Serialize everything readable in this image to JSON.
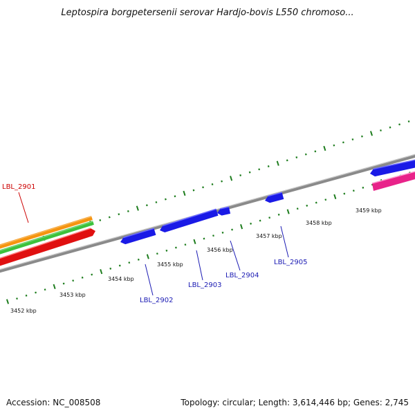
{
  "title": "Leptospira borgpetersenii serovar Hardjo-bovis L550 chromoso...",
  "footer": {
    "accession": "Accession: NC_008508",
    "topology": "Topology: circular; Length: 3,614,446 bp; Genes: 2,745"
  },
  "colors": {
    "backbone": "#8a8a8a",
    "tick": "#1e7d1e",
    "gene_forward": "#e01010",
    "gene_reverse": "#1a1ae6",
    "label_forward": "#cc0000",
    "label_reverse": "#1a1ab3",
    "track_orange": "#f5940f",
    "track_green": "#3cc23c",
    "track_magenta": "#e8238a"
  },
  "scale_ticks": [
    {
      "label": "3452 kbp"
    },
    {
      "label": "3453 kbp"
    },
    {
      "label": "3454 kbp"
    },
    {
      "label": "3455 kbp"
    },
    {
      "label": "3456 kbp"
    },
    {
      "label": "3457 kbp"
    },
    {
      "label": "3458 kbp"
    },
    {
      "label": "3459 kbp"
    }
  ],
  "genes": [
    {
      "label": "LBL_2901",
      "strand": "forward"
    },
    {
      "label": "LBL_2902",
      "strand": "reverse"
    },
    {
      "label": "LBL_2903",
      "strand": "reverse"
    },
    {
      "label": "LBL_2904",
      "strand": "reverse"
    },
    {
      "label": "LBL_2905",
      "strand": "reverse"
    }
  ]
}
